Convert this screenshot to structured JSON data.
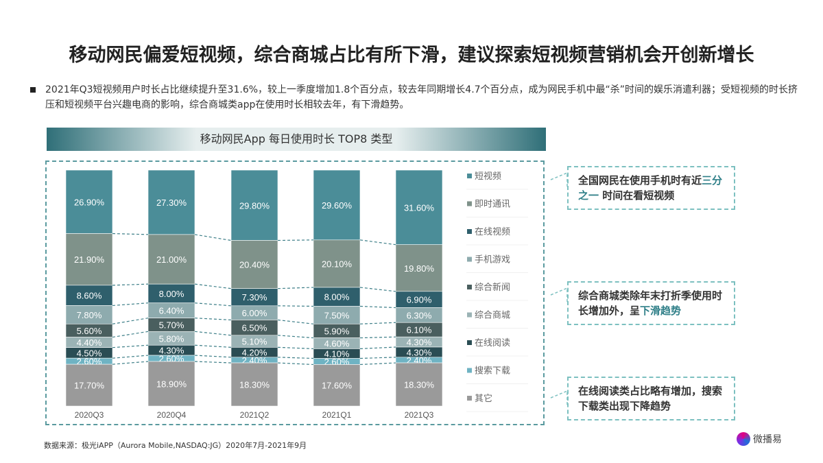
{
  "title": "移动网民偏爱短视频，综合商城占比有所下滑，建议探索短视频营销机会开创新增长",
  "bullet": "2021年Q3短视频用户时长占比继续提升至31.6%，较上一季度增加1.8个百分点，较去年同期增长4.7个百分点，成为网民手机中最“杀”时间的娱乐消遣利器；受短视频的时长挤压和短视频平台兴趣电商的影响，综合商城类app在使用时长相较去年，有下滑趋势。",
  "callouts": [
    {
      "a": "全国网民在使用手机时有近",
      "b": "三分之一",
      "c": " 时间在看短视频"
    },
    {
      "a": "综合商城类除年末打折季使用时长增加外，呈",
      "b": "下滑趋势",
      "c": ""
    },
    {
      "a": "在线阅读类占比略有增加，搜索下载类出现下降趋势",
      "b": "",
      "c": ""
    }
  ],
  "source": "数据来源：极光iAPP（Aurora Mobile,NASDAQ:JG）2020年7月-2021年9月",
  "logo": "微播易",
  "chart_data": {
    "type": "bar",
    "stacked": true,
    "title": "移动网民App 每日使用时长 TOP8 类型",
    "categories": [
      "2020Q3",
      "2020Q4",
      "2021Q2",
      "2021Q1",
      "2021Q3"
    ],
    "ylim": [
      0,
      100
    ],
    "legend_position": "right",
    "series": [
      {
        "name": "短视频",
        "color": "#4b8d98",
        "values": [
          26.9,
          27.3,
          29.8,
          29.6,
          31.6
        ]
      },
      {
        "name": "即时通讯",
        "color": "#7f928a",
        "values": [
          21.9,
          21.0,
          20.4,
          20.1,
          19.8
        ]
      },
      {
        "name": "在线视频",
        "color": "#2f5f6c",
        "values": [
          8.6,
          8.0,
          7.3,
          8.0,
          6.9
        ]
      },
      {
        "name": "手机游戏",
        "color": "#8eabae",
        "values": [
          7.8,
          6.4,
          6.0,
          7.5,
          6.3
        ]
      },
      {
        "name": "综合新闻",
        "color": "#4a5f5f",
        "values": [
          5.6,
          5.7,
          6.5,
          5.9,
          6.1
        ]
      },
      {
        "name": "综合商城",
        "color": "#9bb3b5",
        "values": [
          4.4,
          5.8,
          5.1,
          4.6,
          4.3
        ]
      },
      {
        "name": "在线阅读",
        "color": "#2a4d54",
        "values": [
          4.5,
          4.3,
          4.2,
          4.1,
          4.3
        ]
      },
      {
        "name": "搜索下载",
        "color": "#6fb3c3",
        "values": [
          2.6,
          2.6,
          2.4,
          2.6,
          2.4
        ]
      },
      {
        "name": "其它",
        "color": "#9a9a9a",
        "values": [
          17.7,
          18.9,
          18.3,
          17.6,
          18.3
        ]
      }
    ]
  }
}
